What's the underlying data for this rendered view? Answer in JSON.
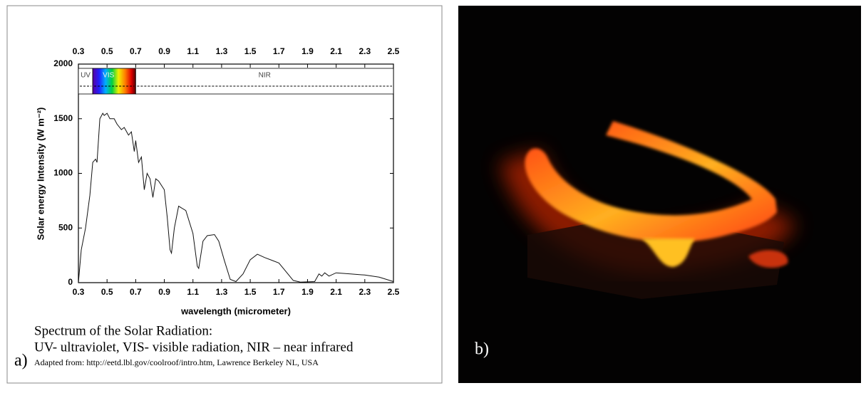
{
  "chart_data": {
    "type": "line",
    "xlabel": "wavelength (micrometer)",
    "ylabel": "Solar energy Intensity (W m⁻²)",
    "xlim": [
      0.3,
      2.5
    ],
    "xticks": [
      0.3,
      0.5,
      0.7,
      0.9,
      1.1,
      1.3,
      1.5,
      1.7,
      1.9,
      2.1,
      2.3,
      2.5
    ],
    "ylim": [
      0,
      2000
    ],
    "yticks": [
      0,
      500,
      1000,
      1500,
      2000
    ],
    "grid": false,
    "color": "#111111",
    "bands": [
      {
        "label": "UV",
        "range": [
          0.3,
          0.4
        ]
      },
      {
        "label": "VIS",
        "range": [
          0.4,
          0.7
        ]
      },
      {
        "label": "NIR",
        "range": [
          0.7,
          2.5
        ]
      }
    ],
    "x": [
      0.3,
      0.32,
      0.35,
      0.38,
      0.4,
      0.42,
      0.43,
      0.45,
      0.47,
      0.48,
      0.5,
      0.52,
      0.55,
      0.57,
      0.6,
      0.62,
      0.65,
      0.67,
      0.69,
      0.7,
      0.72,
      0.74,
      0.76,
      0.78,
      0.8,
      0.82,
      0.84,
      0.86,
      0.9,
      0.92,
      0.94,
      0.95,
      0.97,
      1.0,
      1.05,
      1.1,
      1.13,
      1.14,
      1.17,
      1.2,
      1.25,
      1.28,
      1.32,
      1.36,
      1.4,
      1.45,
      1.5,
      1.55,
      1.6,
      1.7,
      1.75,
      1.8,
      1.85,
      1.95,
      1.98,
      2.0,
      2.02,
      2.05,
      2.1,
      2.2,
      2.3,
      2.4,
      2.45,
      2.5
    ],
    "values": [
      0,
      300,
      500,
      800,
      1100,
      1130,
      1100,
      1500,
      1550,
      1530,
      1550,
      1500,
      1500,
      1450,
      1400,
      1420,
      1350,
      1380,
      1200,
      1300,
      1100,
      1150,
      850,
      1000,
      950,
      780,
      950,
      930,
      850,
      600,
      300,
      270,
      500,
      700,
      660,
      450,
      150,
      130,
      380,
      430,
      440,
      380,
      200,
      30,
      10,
      80,
      210,
      260,
      230,
      180,
      100,
      20,
      5,
      10,
      80,
      60,
      90,
      60,
      90,
      80,
      70,
      50,
      30,
      10
    ]
  },
  "caption": {
    "title": "Spectrum of the Solar Radiation:",
    "legend": "UV- ultraviolet, VIS- visible radiation, NIR – near infrared",
    "source": "Adapted from: http://eetd.lbl.gov/coolroof/intro.htm, Lawrence Berkeley NL, USA"
  },
  "panel_labels": [
    "a)",
    "b)"
  ]
}
